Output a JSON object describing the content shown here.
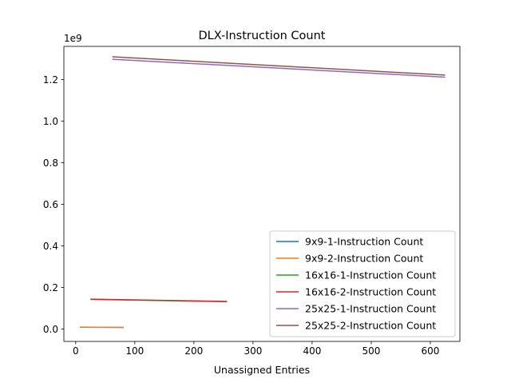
{
  "chart_data": {
    "type": "line",
    "title": "DLX-Instruction Count",
    "xlabel": "Unassigned Entries",
    "ylabel": "",
    "y_offset_label": "1e9",
    "xlim": [
      -20,
      650
    ],
    "ylim": [
      -0.06,
      1.36
    ],
    "xticks": [
      0,
      100,
      200,
      300,
      400,
      500,
      600
    ],
    "yticks": [
      0.0,
      0.2,
      0.4,
      0.6,
      0.8,
      1.0,
      1.2
    ],
    "xtick_labels": [
      "0",
      "100",
      "200",
      "300",
      "400",
      "500",
      "600"
    ],
    "ytick_labels": [
      "0.0",
      "0.2",
      "0.4",
      "0.6",
      "0.8",
      "1.0",
      "1.2"
    ],
    "grid": false,
    "legend_position": "lower-right",
    "series": [
      {
        "name": "9x9-1-Instruction Count",
        "color": "#1f77b4",
        "x": [
          7,
          81
        ],
        "y": [
          0.0085,
          0.0075
        ]
      },
      {
        "name": "9x9-2-Instruction Count",
        "color": "#ff7f0e",
        "x": [
          7,
          81
        ],
        "y": [
          0.0088,
          0.0078
        ]
      },
      {
        "name": "16x16-1-Instruction Count",
        "color": "#2ca02c",
        "x": [
          25,
          256
        ],
        "y": [
          0.1425,
          0.1315
        ]
      },
      {
        "name": "16x16-2-Instruction Count",
        "color": "#d62728",
        "x": [
          25,
          256
        ],
        "y": [
          0.1435,
          0.1325
        ]
      },
      {
        "name": "25x25-1-Instruction Count",
        "color": "#9467bd",
        "x": [
          62,
          625
        ],
        "y": [
          1.298,
          1.212
        ]
      },
      {
        "name": "25x25-2-Instruction Count",
        "color": "#8c564b",
        "x": [
          62,
          625
        ],
        "y": [
          1.31,
          1.222
        ]
      }
    ]
  }
}
